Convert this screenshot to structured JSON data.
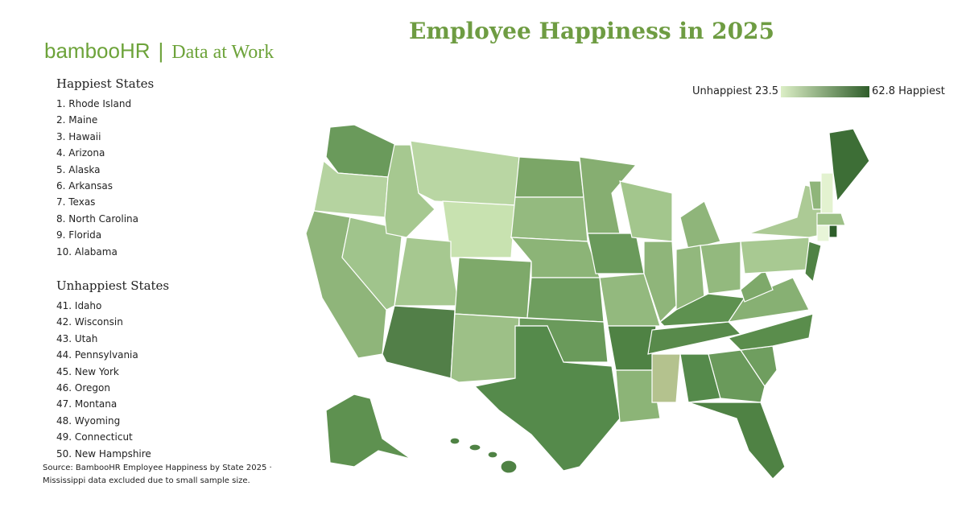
{
  "header": {
    "brand": "bambooHR",
    "tagline": "Data at Work",
    "title": "Employee Happiness in 2025"
  },
  "legend": {
    "low_label": "Unhappiest",
    "low": 23.5,
    "high": 62.8,
    "high_label": "Happiest"
  },
  "happiest": {
    "heading": "Happiest States",
    "items": [
      "1. Rhode Island",
      "2. Maine",
      "3. Hawaii",
      "4. Arizona",
      "5. Alaska",
      "6. Arkansas",
      "7. Texas",
      "8. North Carolina",
      "9. Florida",
      "10. Alabama"
    ]
  },
  "unhappiest": {
    "heading": "Unhappiest States",
    "items": [
      "41. Idaho",
      "42. Wisconsin",
      "43. Utah",
      "44. Pennsylvania",
      "45. New York",
      "46. Oregon",
      "47. Montana",
      "48. Wyoming",
      "49. Connecticut",
      "50. New Hampshire"
    ]
  },
  "source": "Source: BambooHR Employee Happiness by State 2025 · Mississippi data excluded due to small sample size."
}
